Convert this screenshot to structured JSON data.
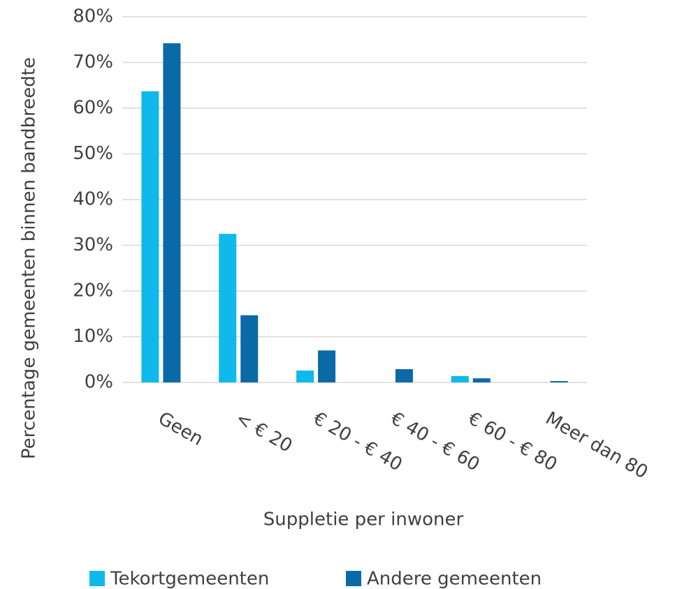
{
  "chart_data": {
    "type": "bar",
    "x_label": "Suppletie per inwoner",
    "y_label": "Percentage gemeenten binnen bandbreedte",
    "categories": [
      "Geen",
      "< € 20",
      "€ 20 - € 40",
      "€ 40 - € 60",
      "€ 60 - € 80",
      "Meer dan 80"
    ],
    "series": [
      {
        "name": "Tekortgemeenten",
        "color": "#0fb9ec",
        "values": [
          63.7,
          32.5,
          2.6,
          0,
          1.4,
          0
        ]
      },
      {
        "name": "Andere gemeenten",
        "color": "#0a6aa8",
        "values": [
          74.2,
          14.7,
          7.0,
          2.9,
          0.9,
          0.3
        ]
      }
    ],
    "ylim": [
      0,
      80
    ],
    "yticks": [
      {
        "value": 0,
        "label": "0%"
      },
      {
        "value": 10,
        "label": "10%"
      },
      {
        "value": 20,
        "label": "20%"
      },
      {
        "value": 30,
        "label": "30%"
      },
      {
        "value": 40,
        "label": "40%"
      },
      {
        "value": 50,
        "label": "50%"
      },
      {
        "value": 60,
        "label": "60%"
      },
      {
        "value": 70,
        "label": "70%"
      },
      {
        "value": 80,
        "label": "80%"
      }
    ],
    "grid": true,
    "legend": "bottom"
  }
}
